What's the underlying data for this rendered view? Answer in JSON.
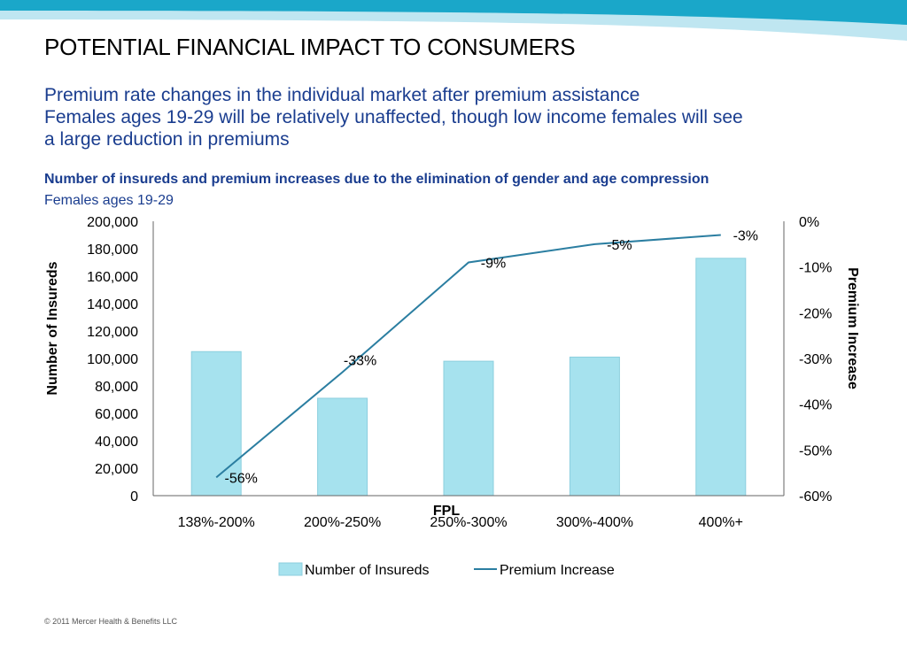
{
  "slide": {
    "title": "POTENTIAL FINANCIAL IMPACT TO CONSUMERS",
    "subtitle_line1": "Premium rate changes in the individual market after premium assistance",
    "subtitle_line2": "Females ages 19-29 will be relatively unaffected, though low income females will see",
    "subtitle_line3": "a large reduction in premiums",
    "chart_heading": "Number of insureds and premium increases due to the elimination of gender and age compression",
    "chart_subheading": "Females ages 19-29",
    "copyright": "© 2011 Mercer Health & Benefits LLC"
  },
  "colors": {
    "band_dark": "#1aa7c9",
    "band_light": "#bfe6f1",
    "bar_fill": "#a6e2ee",
    "bar_stroke": "#8ccfde",
    "line": "#2b7ea1",
    "axis": "#000000"
  },
  "chart_data": {
    "type": "bar",
    "categories": [
      "138%-200%",
      "200%-250%",
      "250%-300%",
      "300%-400%",
      "400%+"
    ],
    "xlabel": "FPL",
    "ylabel": "Number of Insureds",
    "y2label": "Premium Increase",
    "ylim": [
      0,
      200000
    ],
    "y2lim": [
      -60,
      0
    ],
    "yticks": [
      "0",
      "20,000",
      "40,000",
      "60,000",
      "80,000",
      "100,000",
      "120,000",
      "140,000",
      "160,000",
      "180,000",
      "200,000"
    ],
    "y2ticks": [
      "-60%",
      "-50%",
      "-40%",
      "-30%",
      "-20%",
      "-10%",
      "0%"
    ],
    "series": [
      {
        "name": "Number of Insureds",
        "type": "bar",
        "axis": "left",
        "values": [
          105000,
          71000,
          98000,
          101000,
          173000
        ]
      },
      {
        "name": "Premium Increase",
        "type": "line",
        "axis": "right",
        "values": [
          -56,
          -33,
          -9,
          -5,
          -3
        ],
        "labels": [
          "-56%",
          "-33%",
          "-9%",
          "-5%",
          "-3%"
        ]
      }
    ],
    "legend": "bottom",
    "grid": false
  }
}
